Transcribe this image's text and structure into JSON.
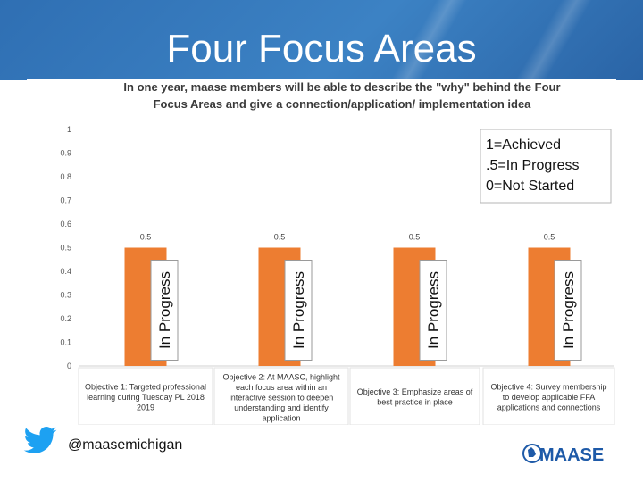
{
  "slide": {
    "title": "Four Focus Areas",
    "twitter_handle": "@maasemichigan",
    "logo_text": "MAASE"
  },
  "colors": {
    "bar": "#ed7d31",
    "banner": "#3479bf",
    "twitter": "#1da1f2",
    "logo": "#1e5aa8"
  },
  "icons": [
    "twitter-bird-icon",
    "maase-logo"
  ],
  "chart_data": {
    "type": "bar",
    "title": "In one year, maase members will be able to describe the \"why\" behind the Four Focus Areas and give a connection/application/ implementation idea",
    "categories": [
      "Objective 1: Targeted professional learning during Tuesday PL 2018 2019",
      "Objective 2: At MAASC, highlight each focus area within an interactive session to deepen understanding and identify application",
      "Objective 3: Emphasize areas of best practice in place",
      "Objective 4: Survey membership to develop applicable FFA applications and connections"
    ],
    "values": [
      0.5,
      0.5,
      0.5,
      0.5
    ],
    "data_labels": [
      "0.5",
      "0.5",
      "0.5",
      "0.5"
    ],
    "bar_annotations": [
      "In Progress",
      "In Progress",
      "In Progress",
      "In Progress"
    ],
    "yticks": [
      "0",
      "0.1",
      "0.2",
      "0.3",
      "0.4",
      "0.5",
      "0.6",
      "0.7",
      "0.8",
      "0.9",
      "1"
    ],
    "ylim": [
      0,
      1
    ],
    "grid": false,
    "legend_placement": "top-right",
    "legend": [
      "1=Achieved",
      ".5=In Progress",
      "0=Not Started"
    ]
  }
}
